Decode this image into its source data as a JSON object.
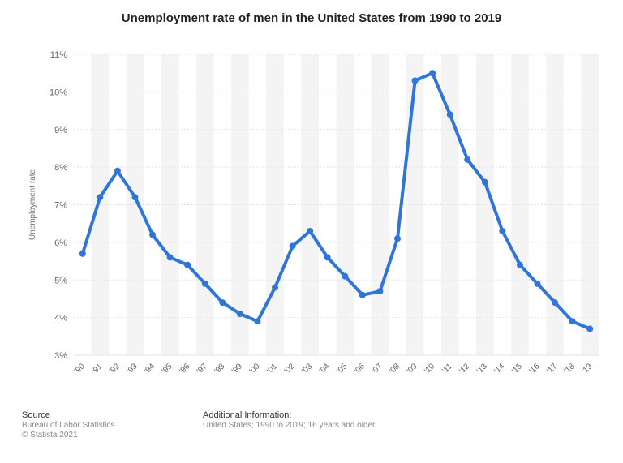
{
  "chart_data": {
    "type": "line",
    "title": "Unemployment rate of men in the United States from 1990 to 2019",
    "ylabel": "Unemployment rate",
    "xlabel": "",
    "categories": [
      "'90",
      "'91",
      "'92",
      "'93",
      "'94",
      "'95",
      "'96",
      "'97",
      "'98",
      "'99",
      "'00",
      "'01",
      "'02",
      "'03",
      "'04",
      "'05",
      "'06",
      "'07",
      "'08",
      "'09",
      "'10",
      "'11",
      "'12",
      "'13",
      "'14",
      "'15",
      "'16",
      "'17",
      "'18",
      "'19"
    ],
    "series": [
      {
        "values": [
          5.7,
          7.2,
          7.9,
          7.2,
          6.2,
          5.6,
          5.4,
          4.9,
          4.4,
          4.1,
          3.9,
          4.8,
          5.9,
          6.3,
          5.6,
          5.1,
          4.6,
          4.7,
          6.1,
          10.3,
          10.5,
          9.4,
          8.2,
          7.6,
          6.3,
          5.4,
          4.9,
          4.4,
          3.9,
          3.7
        ]
      }
    ],
    "ylim": [
      3,
      11
    ],
    "yticks": [
      "3%",
      "4%",
      "5%",
      "6%",
      "7%",
      "8%",
      "9%",
      "10%",
      "11%"
    ],
    "grid": true,
    "line_color": "#2f76d8",
    "band_color": "#f4f4f4"
  },
  "footer": {
    "source_heading": "Source",
    "source_text": "Bureau of Labor Statistics",
    "copyright": "© Statista 2021",
    "info_heading": "Additional Information:",
    "info_text": "United States; 1990 to 2019; 16 years and older"
  }
}
